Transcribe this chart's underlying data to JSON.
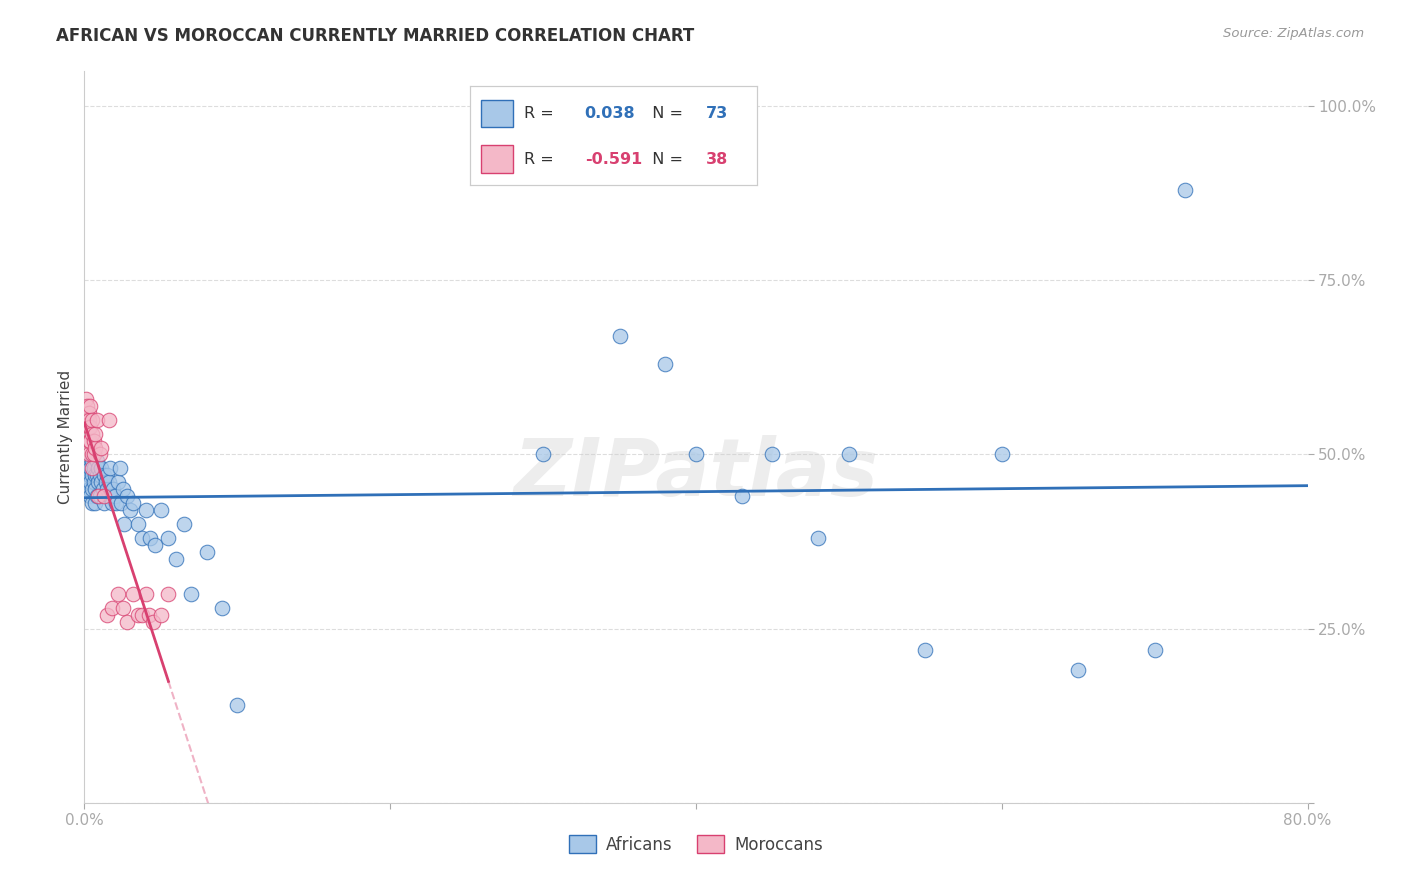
{
  "title": "AFRICAN VS MOROCCAN CURRENTLY MARRIED CORRELATION CHART",
  "source": "Source: ZipAtlas.com",
  "ylabel_text": "Currently Married",
  "watermark": "ZIPatlas",
  "xlim": [
    0.0,
    0.8
  ],
  "ylim": [
    0.0,
    1.05
  ],
  "african_color": "#a8c8e8",
  "moroccan_color": "#f4b8c8",
  "african_R": 0.038,
  "african_N": 73,
  "moroccan_R": -0.591,
  "moroccan_N": 38,
  "african_line_color": "#3070b8",
  "moroccan_line_color": "#d84070",
  "african_x": [
    0.002,
    0.002,
    0.003,
    0.003,
    0.004,
    0.004,
    0.004,
    0.005,
    0.005,
    0.005,
    0.005,
    0.006,
    0.006,
    0.006,
    0.007,
    0.007,
    0.007,
    0.008,
    0.008,
    0.008,
    0.009,
    0.009,
    0.01,
    0.01,
    0.011,
    0.011,
    0.012,
    0.013,
    0.013,
    0.014,
    0.015,
    0.015,
    0.016,
    0.016,
    0.017,
    0.018,
    0.019,
    0.02,
    0.021,
    0.022,
    0.023,
    0.024,
    0.025,
    0.026,
    0.028,
    0.03,
    0.032,
    0.035,
    0.038,
    0.04,
    0.043,
    0.046,
    0.05,
    0.055,
    0.06,
    0.065,
    0.07,
    0.08,
    0.09,
    0.1,
    0.3,
    0.35,
    0.38,
    0.4,
    0.43,
    0.45,
    0.48,
    0.5,
    0.55,
    0.6,
    0.65,
    0.7,
    0.72
  ],
  "african_y": [
    0.46,
    0.48,
    0.45,
    0.47,
    0.46,
    0.48,
    0.44,
    0.47,
    0.49,
    0.45,
    0.43,
    0.46,
    0.48,
    0.5,
    0.47,
    0.45,
    0.43,
    0.49,
    0.47,
    0.44,
    0.46,
    0.48,
    0.47,
    0.44,
    0.46,
    0.48,
    0.45,
    0.47,
    0.43,
    0.46,
    0.45,
    0.47,
    0.44,
    0.46,
    0.48,
    0.43,
    0.45,
    0.44,
    0.43,
    0.46,
    0.48,
    0.43,
    0.45,
    0.4,
    0.44,
    0.42,
    0.43,
    0.4,
    0.38,
    0.42,
    0.38,
    0.37,
    0.42,
    0.38,
    0.35,
    0.4,
    0.3,
    0.36,
    0.28,
    0.14,
    0.5,
    0.67,
    0.63,
    0.5,
    0.44,
    0.5,
    0.38,
    0.5,
    0.22,
    0.5,
    0.19,
    0.22,
    0.88
  ],
  "moroccan_x": [
    0.001,
    0.002,
    0.002,
    0.003,
    0.003,
    0.003,
    0.003,
    0.003,
    0.004,
    0.004,
    0.004,
    0.005,
    0.005,
    0.005,
    0.005,
    0.006,
    0.006,
    0.007,
    0.007,
    0.008,
    0.009,
    0.01,
    0.011,
    0.013,
    0.015,
    0.016,
    0.018,
    0.022,
    0.025,
    0.028,
    0.032,
    0.035,
    0.038,
    0.04,
    0.042,
    0.045,
    0.05,
    0.055
  ],
  "moroccan_y": [
    0.58,
    0.57,
    0.55,
    0.56,
    0.54,
    0.52,
    0.5,
    0.55,
    0.54,
    0.52,
    0.57,
    0.55,
    0.53,
    0.5,
    0.48,
    0.52,
    0.5,
    0.51,
    0.53,
    0.55,
    0.44,
    0.5,
    0.51,
    0.44,
    0.27,
    0.55,
    0.28,
    0.3,
    0.28,
    0.26,
    0.3,
    0.27,
    0.27,
    0.3,
    0.27,
    0.26,
    0.27,
    0.3
  ],
  "background_color": "#ffffff",
  "grid_color": "#dddddd"
}
